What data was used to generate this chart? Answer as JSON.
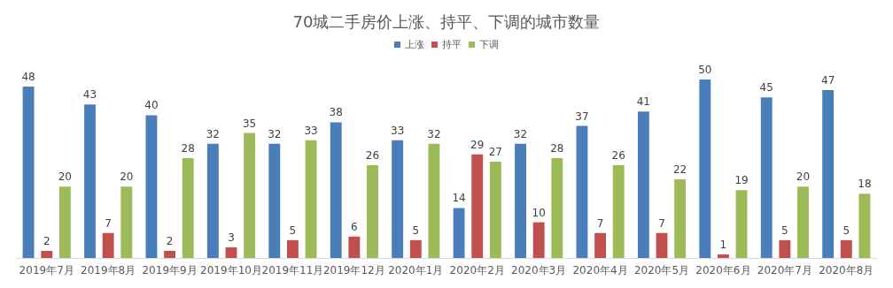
{
  "chart_data": {
    "type": "bar",
    "title": "70城二手房价上涨、持平、下调的城市数量",
    "categories": [
      "2019年7月",
      "2019年8月",
      "2019年9月",
      "2019年10月",
      "2019年11月",
      "2019年12月",
      "2020年1月",
      "2020年2月",
      "2020年3月",
      "2020年4月",
      "2020年5月",
      "2020年6月",
      "2020年7月",
      "2020年8月"
    ],
    "series": [
      {
        "name": "上涨",
        "color": "#4a7ebb",
        "values": [
          48,
          43,
          40,
          32,
          32,
          38,
          33,
          14,
          32,
          37,
          41,
          50,
          45,
          47
        ]
      },
      {
        "name": "持平",
        "color": "#c0504d",
        "values": [
          2,
          7,
          2,
          3,
          5,
          6,
          5,
          29,
          10,
          7,
          7,
          1,
          5,
          5
        ]
      },
      {
        "name": "下调",
        "color": "#9bbb59",
        "values": [
          20,
          20,
          28,
          35,
          33,
          26,
          32,
          27,
          28,
          26,
          22,
          19,
          20,
          18
        ]
      }
    ],
    "data_labels": true,
    "legend": "top",
    "grid": false
  }
}
